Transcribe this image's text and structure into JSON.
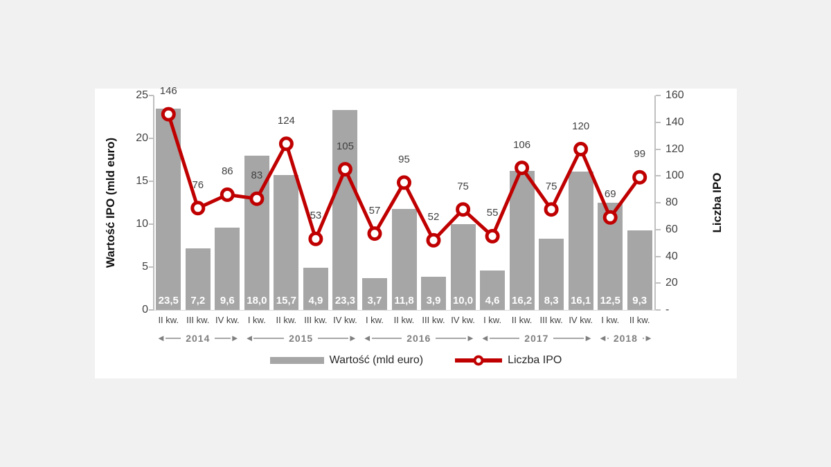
{
  "chart_data": {
    "type": "bar",
    "note": "combo chart: bars (value, left axis) + line with circle markers (count, right axis)",
    "categories": [
      "II kw.",
      "III kw.",
      "IV kw.",
      "I kw.",
      "II kw.",
      "III kw.",
      "IV kw.",
      "I kw.",
      "II kw.",
      "III kw.",
      "IV kw.",
      "I kw.",
      "II kw.",
      "III kw.",
      "IV kw.",
      "I kw.",
      "II kw."
    ],
    "year_groups": [
      {
        "label": "2014",
        "start": 0,
        "count": 3
      },
      {
        "label": "2015",
        "start": 3,
        "count": 4
      },
      {
        "label": "2016",
        "start": 7,
        "count": 4
      },
      {
        "label": "2017",
        "start": 11,
        "count": 4
      },
      {
        "label": "2018",
        "start": 15,
        "count": 2
      }
    ],
    "series": [
      {
        "name": "Wartość (mld euro)",
        "type": "bar",
        "color": "#a6a6a6",
        "values": [
          23.5,
          7.2,
          9.6,
          18.0,
          15.7,
          4.9,
          23.3,
          3.7,
          11.8,
          3.9,
          10.0,
          4.6,
          16.2,
          8.3,
          16.1,
          12.5,
          9.3
        ],
        "value_labels": [
          "23,5",
          "7,2",
          "9,6",
          "18,0",
          "15,7",
          "4,9",
          "23,3",
          "3,7",
          "11,8",
          "3,9",
          "10,0",
          "4,6",
          "16,2",
          "8,3",
          "16,1",
          "12,5",
          "9,3"
        ]
      },
      {
        "name": "Liczba IPO",
        "type": "line",
        "color": "#c00000",
        "values": [
          146,
          76,
          86,
          83,
          124,
          53,
          105,
          57,
          95,
          52,
          75,
          55,
          106,
          75,
          120,
          69,
          99
        ]
      }
    ],
    "left_axis": {
      "title": "Wartość IPO (mld euro)",
      "ticks": [
        0,
        5,
        10,
        15,
        20,
        25
      ],
      "min": 0,
      "max": 25
    },
    "right_axis": {
      "title": "Liczba IPO",
      "ticks": [
        "-",
        20,
        40,
        60,
        80,
        100,
        120,
        140,
        160
      ],
      "min": 0,
      "max": 160
    },
    "legend": [
      {
        "label": "Wartość (mld euro)",
        "swatch": "bar"
      },
      {
        "label": "Liczba IPO",
        "swatch": "line"
      }
    ],
    "grid": false,
    "legend_position": "bottom"
  },
  "colors": {
    "background": "#f1f1f1",
    "panel": "#ffffff",
    "bar": "#a6a6a6",
    "line": "#c00000",
    "marker_fill": "#ffffff",
    "axis": "#bfbfbf",
    "label": "#404040",
    "year": "#7f7f7f"
  }
}
